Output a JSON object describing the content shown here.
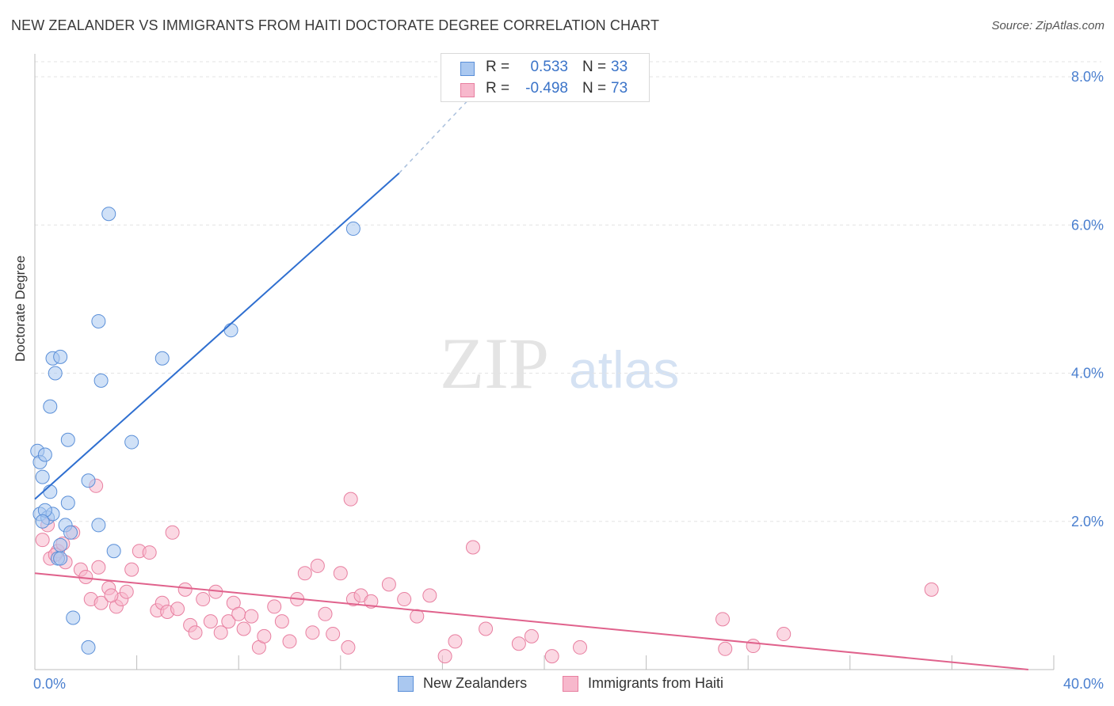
{
  "title": "NEW ZEALANDER VS IMMIGRANTS FROM HAITI DOCTORATE DEGREE CORRELATION CHART",
  "source": "Source: ZipAtlas.com",
  "watermark": {
    "zip": "ZIP",
    "atlas": "atlas"
  },
  "legend_top": {
    "rows": [
      {
        "r_label": "R =",
        "r_value": "0.533",
        "n_label": "N =",
        "n_value": "33"
      },
      {
        "r_label": "R =",
        "r_value": "-0.498",
        "n_label": "N =",
        "n_value": "73"
      }
    ]
  },
  "legend_bottom": {
    "series1": "New Zealanders",
    "series2": "Immigrants from Haiti"
  },
  "colors": {
    "series1_fill": "#aac8f0",
    "series1_stroke": "#5a8fd8",
    "series1_line": "#2f6fd0",
    "series2_fill": "#f7b8cc",
    "series2_stroke": "#e87fa0",
    "series2_line": "#e0628c",
    "axis_text": "#4a7fcf",
    "grid": "#e3e3e3"
  },
  "chart_data": {
    "type": "scatter",
    "title": "NEW ZEALANDER VS IMMIGRANTS FROM HAITI DOCTORATE DEGREE CORRELATION CHART",
    "xlabel": "",
    "ylabel": "Doctorate Degree",
    "xlim": [
      0,
      40
    ],
    "ylim": [
      0,
      8
    ],
    "x_tick_labels": [
      "0.0%",
      "40.0%"
    ],
    "y_ticks": [
      2,
      4,
      6,
      8
    ],
    "y_tick_labels": [
      "2.0%",
      "4.0%",
      "6.0%",
      "8.0%"
    ],
    "grid": true,
    "series": [
      {
        "name": "New Zealanders",
        "r": 0.533,
        "n": 33,
        "trend": {
          "x0": 0,
          "y0": 2.3,
          "x1": 14.3,
          "y1": 6.7,
          "dash_x1": 17.6,
          "dash_y1": 7.9
        },
        "points": [
          [
            0.1,
            2.95
          ],
          [
            0.2,
            2.8
          ],
          [
            0.3,
            2.6
          ],
          [
            0.4,
            2.9
          ],
          [
            0.2,
            2.1
          ],
          [
            0.5,
            2.05
          ],
          [
            0.6,
            2.4
          ],
          [
            0.7,
            2.1
          ],
          [
            0.7,
            4.2
          ],
          [
            0.8,
            4.0
          ],
          [
            0.6,
            3.55
          ],
          [
            1.0,
            4.22
          ],
          [
            1.3,
            3.1
          ],
          [
            1.2,
            1.95
          ],
          [
            1.4,
            1.85
          ],
          [
            1.3,
            2.25
          ],
          [
            0.9,
            1.5
          ],
          [
            1.0,
            1.68
          ],
          [
            1.0,
            1.5
          ],
          [
            1.5,
            0.7
          ],
          [
            2.1,
            2.55
          ],
          [
            2.5,
            1.95
          ],
          [
            2.5,
            4.7
          ],
          [
            2.6,
            3.9
          ],
          [
            2.9,
            6.15
          ],
          [
            3.1,
            1.6
          ],
          [
            3.8,
            3.07
          ],
          [
            5.0,
            4.2
          ],
          [
            7.7,
            4.58
          ],
          [
            12.5,
            5.95
          ],
          [
            2.1,
            0.3
          ],
          [
            0.4,
            2.15
          ],
          [
            0.3,
            2.0
          ]
        ]
      },
      {
        "name": "Immigrants from Haiti",
        "r": -0.498,
        "n": 73,
        "trend": {
          "x0": 0,
          "y0": 1.3,
          "x1": 39.0,
          "y1": 0.0
        },
        "points": [
          [
            0.3,
            1.75
          ],
          [
            0.5,
            1.95
          ],
          [
            0.6,
            1.5
          ],
          [
            0.9,
            1.6
          ],
          [
            1.2,
            1.45
          ],
          [
            1.5,
            1.85
          ],
          [
            1.8,
            1.35
          ],
          [
            2.0,
            1.25
          ],
          [
            2.2,
            0.95
          ],
          [
            2.5,
            1.38
          ],
          [
            2.6,
            0.9
          ],
          [
            2.9,
            1.1
          ],
          [
            3.2,
            0.85
          ],
          [
            3.4,
            0.95
          ],
          [
            3.6,
            1.05
          ],
          [
            3.8,
            1.35
          ],
          [
            4.1,
            1.6
          ],
          [
            4.5,
            1.58
          ],
          [
            4.8,
            0.8
          ],
          [
            5.0,
            0.9
          ],
          [
            5.2,
            0.78
          ],
          [
            5.6,
            0.82
          ],
          [
            5.4,
            1.85
          ],
          [
            5.9,
            1.08
          ],
          [
            6.1,
            0.6
          ],
          [
            6.3,
            0.5
          ],
          [
            6.6,
            0.95
          ],
          [
            6.9,
            0.65
          ],
          [
            7.1,
            1.05
          ],
          [
            7.3,
            0.5
          ],
          [
            7.6,
            0.65
          ],
          [
            7.8,
            0.9
          ],
          [
            8.0,
            0.75
          ],
          [
            8.2,
            0.55
          ],
          [
            8.5,
            0.72
          ],
          [
            8.8,
            0.3
          ],
          [
            9.0,
            0.45
          ],
          [
            9.4,
            0.85
          ],
          [
            9.7,
            0.65
          ],
          [
            10.0,
            0.38
          ],
          [
            10.3,
            0.95
          ],
          [
            10.6,
            1.3
          ],
          [
            10.9,
            0.5
          ],
          [
            11.1,
            1.4
          ],
          [
            11.4,
            0.75
          ],
          [
            11.7,
            0.48
          ],
          [
            12.0,
            1.3
          ],
          [
            12.3,
            0.3
          ],
          [
            12.5,
            0.95
          ],
          [
            12.8,
            1.0
          ],
          [
            13.2,
            0.92
          ],
          [
            12.4,
            2.3
          ],
          [
            13.9,
            1.15
          ],
          [
            14.5,
            0.95
          ],
          [
            15.0,
            0.72
          ],
          [
            15.5,
            1.0
          ],
          [
            16.1,
            0.18
          ],
          [
            16.5,
            0.38
          ],
          [
            17.2,
            1.65
          ],
          [
            17.7,
            0.55
          ],
          [
            19.0,
            0.35
          ],
          [
            19.5,
            0.45
          ],
          [
            20.3,
            0.18
          ],
          [
            21.4,
            0.3
          ],
          [
            27.0,
            0.68
          ],
          [
            27.1,
            0.28
          ],
          [
            28.2,
            0.32
          ],
          [
            29.4,
            0.48
          ],
          [
            35.2,
            1.08
          ],
          [
            2.4,
            2.48
          ],
          [
            1.1,
            1.7
          ],
          [
            0.8,
            1.55
          ],
          [
            3.0,
            1.0
          ]
        ]
      }
    ]
  }
}
